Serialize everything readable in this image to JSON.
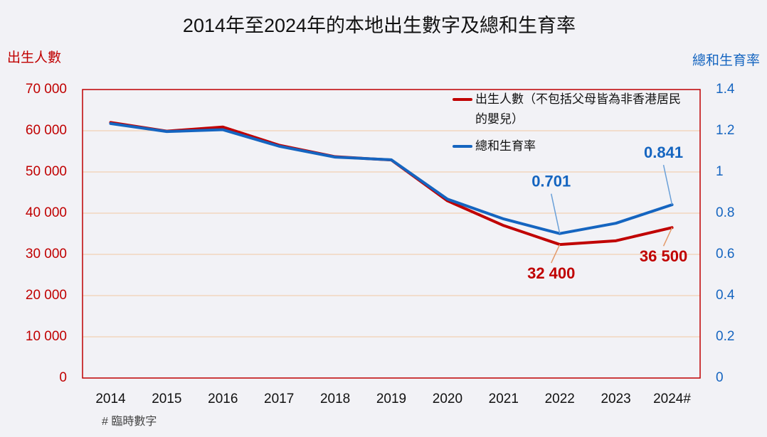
{
  "chart_data": {
    "type": "line",
    "title": "2014年至2024年的本地出生數字及總和生育率",
    "y_label": "出生人數",
    "y2_label": "總和生育率",
    "note": "# 臨時數字",
    "categories": [
      "2014",
      "2015",
      "2016",
      "2017",
      "2018",
      "2019",
      "2020",
      "2021",
      "2022",
      "2023",
      "2024#"
    ],
    "series": [
      {
        "name": "出生人數（不包括父母皆為非香港居民的嬰兒）",
        "color": "#c00000",
        "values": [
          62000,
          59900,
          60900,
          56500,
          53700,
          52900,
          43000,
          37000,
          32400,
          33300,
          36500
        ],
        "value_labels": [
          null,
          null,
          null,
          null,
          null,
          null,
          null,
          null,
          "32 400",
          null,
          "36 500"
        ]
      },
      {
        "name": "總和生育率",
        "color": "#1565c0",
        "axis": "y2",
        "values": [
          1.235,
          1.196,
          1.205,
          1.125,
          1.072,
          1.059,
          0.868,
          0.772,
          0.701,
          0.751,
          0.841
        ],
        "value_labels": [
          null,
          null,
          null,
          null,
          null,
          null,
          null,
          null,
          "0.701",
          null,
          "0.841"
        ]
      }
    ],
    "ylim": [
      0,
      70000
    ],
    "yticks": [
      0,
      {
        "value": 10000,
        "label": "10 000"
      },
      {
        "value": 20000,
        "label": "20 000"
      },
      {
        "value": 30000,
        "label": "30 000"
      },
      {
        "value": 40000,
        "label": "40 000"
      },
      {
        "value": 50000,
        "label": "50 000"
      },
      {
        "value": 60000,
        "label": "60 000"
      },
      {
        "value": 70000,
        "label": "70 000"
      }
    ],
    "y2lim": [
      0,
      1.4
    ],
    "y2ticks": [
      0,
      0.2,
      0.4,
      0.6,
      0.8,
      1,
      1.2,
      1.4
    ],
    "grid": true
  }
}
